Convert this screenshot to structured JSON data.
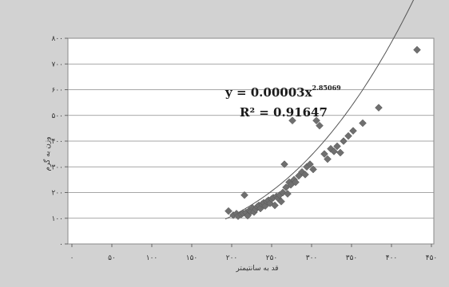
{
  "chart_data": {
    "type": "scatter",
    "title": "",
    "xlabel": "قد به سانتیمتر",
    "ylabel": "وزن به گرم",
    "xlim": [
      0,
      450
    ],
    "ylim": [
      0,
      800
    ],
    "x_ticks": [
      {
        "value": 0,
        "label": "۰"
      },
      {
        "value": 50,
        "label": "۵۰"
      },
      {
        "value": 100,
        "label": "۱۰۰"
      },
      {
        "value": 150,
        "label": "۱۵۰"
      },
      {
        "value": 200,
        "label": "۲۰۰"
      },
      {
        "value": 250,
        "label": "۲۵۰"
      },
      {
        "value": 300,
        "label": "۳۰۰"
      },
      {
        "value": 350,
        "label": "۳۵۰"
      },
      {
        "value": 400,
        "label": "۴۰۰"
      },
      {
        "value": 450,
        "label": "۴۵۰"
      }
    ],
    "y_ticks": [
      {
        "value": 0,
        "label": "۰"
      },
      {
        "value": 100,
        "label": "۱۰۰"
      },
      {
        "value": 200,
        "label": "۲۰۰"
      },
      {
        "value": 300,
        "label": "۳۰۰"
      },
      {
        "value": 400,
        "label": "۴۰۰"
      },
      {
        "value": 500,
        "label": "۵۰۰"
      },
      {
        "value": 600,
        "label": "۶۰۰"
      },
      {
        "value": 700,
        "label": "۷۰۰"
      },
      {
        "value": 800,
        "label": "۸۰۰"
      }
    ],
    "grid": {
      "horizontal": true,
      "vertical": false
    },
    "marker": {
      "shape": "diamond",
      "color": "#6f6f6f"
    },
    "points": [
      [
        196,
        128
      ],
      [
        202,
        112
      ],
      [
        206,
        118
      ],
      [
        208,
        108
      ],
      [
        212,
        115
      ],
      [
        214,
        120
      ],
      [
        216,
        190
      ],
      [
        218,
        122
      ],
      [
        220,
        110
      ],
      [
        222,
        130
      ],
      [
        224,
        126
      ],
      [
        226,
        140
      ],
      [
        228,
        124
      ],
      [
        230,
        135
      ],
      [
        232,
        145
      ],
      [
        234,
        150
      ],
      [
        236,
        138
      ],
      [
        238,
        155
      ],
      [
        240,
        160
      ],
      [
        242,
        148
      ],
      [
        244,
        165
      ],
      [
        246,
        170
      ],
      [
        248,
        158
      ],
      [
        250,
        175
      ],
      [
        252,
        180
      ],
      [
        254,
        150
      ],
      [
        256,
        185
      ],
      [
        258,
        178
      ],
      [
        260,
        190
      ],
      [
        262,
        165
      ],
      [
        264,
        200
      ],
      [
        266,
        310
      ],
      [
        268,
        220
      ],
      [
        270,
        195
      ],
      [
        272,
        240
      ],
      [
        274,
        230
      ],
      [
        276,
        480
      ],
      [
        278,
        250
      ],
      [
        280,
        240
      ],
      [
        284,
        265
      ],
      [
        288,
        280
      ],
      [
        292,
        270
      ],
      [
        294,
        300
      ],
      [
        298,
        310
      ],
      [
        302,
        290
      ],
      [
        306,
        480
      ],
      [
        310,
        460
      ],
      [
        316,
        350
      ],
      [
        320,
        330
      ],
      [
        324,
        370
      ],
      [
        328,
        360
      ],
      [
        332,
        380
      ],
      [
        336,
        355
      ],
      [
        340,
        400
      ],
      [
        346,
        420
      ],
      [
        352,
        440
      ],
      [
        364,
        470
      ],
      [
        384,
        530
      ],
      [
        432,
        755
      ]
    ],
    "trendline": {
      "type": "power",
      "coefficient": 3e-05,
      "exponent": 2.85069,
      "x_range": [
        192,
        434
      ],
      "equation_main": "y = 0.00003x",
      "equation_exponent": "2.85069",
      "r_squared_label": "R² = 0.91647",
      "color": "#555555"
    }
  }
}
